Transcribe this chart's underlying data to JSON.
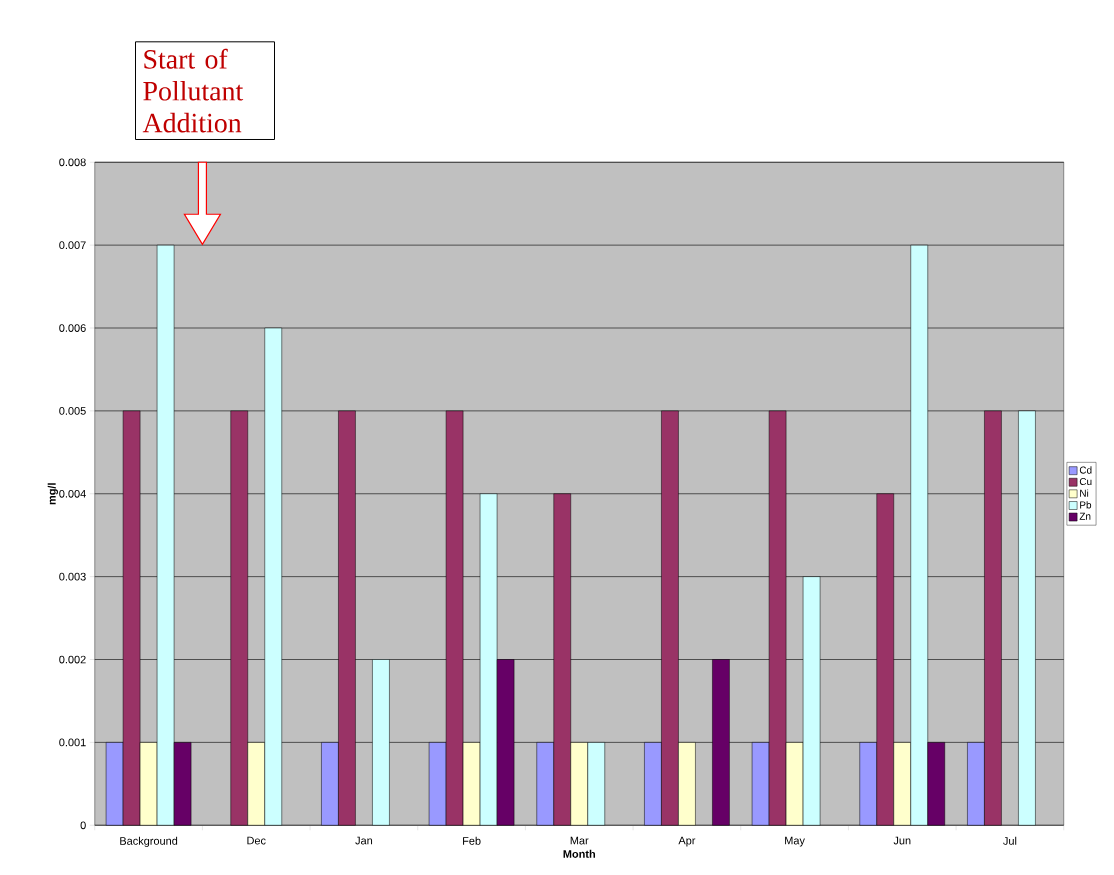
{
  "chart_data": {
    "type": "bar",
    "categories": [
      "Background",
      "Dec",
      "Jan",
      "Feb",
      "Mar",
      "Apr",
      "May",
      "Jun",
      "Jul"
    ],
    "series": [
      {
        "name": "Cd",
        "color": "#9999ff",
        "values": [
          0.001,
          null,
          0.001,
          0.001,
          0.001,
          0.001,
          0.001,
          0.001,
          0.001
        ]
      },
      {
        "name": "Cu",
        "color": "#993366",
        "values": [
          0.005,
          0.005,
          0.005,
          0.005,
          0.004,
          0.005,
          0.005,
          0.004,
          0.005
        ]
      },
      {
        "name": "Ni",
        "color": "#ffffcc",
        "values": [
          0.001,
          0.001,
          null,
          0.001,
          0.001,
          0.001,
          0.001,
          0.001,
          null
        ]
      },
      {
        "name": "Pb",
        "color": "#ccffff",
        "values": [
          0.007,
          0.006,
          0.002,
          0.004,
          0.001,
          null,
          0.003,
          0.007,
          0.005
        ]
      },
      {
        "name": "Zn",
        "color": "#660066",
        "values": [
          0.001,
          null,
          null,
          0.002,
          null,
          0.002,
          null,
          0.001,
          null
        ]
      }
    ],
    "xlabel": "Month",
    "ylabel": "mg/l",
    "ylim": [
      0,
      0.008
    ],
    "yticks": [
      0,
      0.001,
      0.002,
      0.003,
      0.004,
      0.005,
      0.006,
      0.007,
      0.008
    ],
    "grid": "y",
    "legend": "right",
    "annotations": [
      "Start of Pollutant Addition"
    ]
  }
}
